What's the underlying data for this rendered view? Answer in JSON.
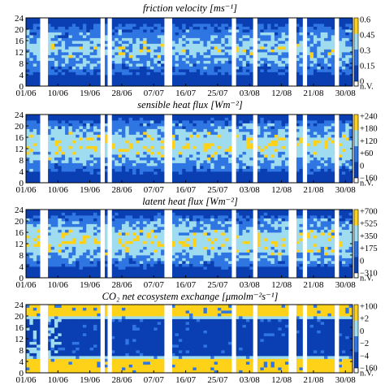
{
  "colors": {
    "low": "#0a3fb2",
    "mid": "#2f76e2",
    "high": "#9fdcf0",
    "highest": "#ffd21a",
    "background": "#ffffff",
    "frame": "#000000"
  },
  "icons": {
    "colorbar": "vertical-colorbar"
  },
  "chart_data": [
    {
      "type": "heatmap",
      "title": "friction velocity [ms⁻¹]",
      "xlabel": "",
      "ylabel": "",
      "x_range": [
        "01/06",
        "31/08"
      ],
      "x_ticks": [
        "01/06",
        "10/06",
        "19/06",
        "28/06",
        "07/07",
        "16/07",
        "25/07",
        "03/08",
        "12/08",
        "21/08",
        "30/08"
      ],
      "x_tick_days": [
        0,
        9,
        18,
        27,
        36,
        45,
        54,
        63,
        72,
        81,
        90
      ],
      "ylim": [
        0,
        24
      ],
      "y_ticks": [
        0,
        4,
        8,
        12,
        16,
        20,
        24
      ],
      "colorbar": {
        "ticks": [
          "0.6",
          "0.45",
          "0.3",
          "0.15",
          "0",
          "n.V."
        ],
        "range": [
          0,
          0.6
        ]
      },
      "pattern": "diurnal",
      "gaps_days": [
        4,
        21,
        23,
        39,
        58,
        64,
        74,
        78,
        87
      ],
      "grid": false
    },
    {
      "type": "heatmap",
      "title": "sensible heat flux [Wm⁻²]",
      "xlabel": "",
      "ylabel": "",
      "x_range": [
        "01/06",
        "31/08"
      ],
      "x_ticks": [
        "01/06",
        "10/06",
        "19/06",
        "28/06",
        "07/07",
        "16/07",
        "25/07",
        "03/08",
        "12/08",
        "21/08",
        "30/08"
      ],
      "x_tick_days": [
        0,
        9,
        18,
        27,
        36,
        45,
        54,
        63,
        72,
        81,
        90
      ],
      "ylim": [
        0,
        24
      ],
      "y_ticks": [
        0,
        4,
        8,
        12,
        16,
        20,
        24
      ],
      "colorbar": {
        "ticks": [
          "+240",
          "+180",
          "+120",
          "+60",
          "0",
          "−160",
          "n.V."
        ],
        "range": [
          -160,
          240
        ]
      },
      "pattern": "diurnal",
      "gaps_days": [
        4,
        21,
        23,
        39,
        58,
        64,
        74,
        78,
        87
      ],
      "grid": false
    },
    {
      "type": "heatmap",
      "title": "latent heat flux [Wm⁻²]",
      "xlabel": "",
      "ylabel": "",
      "x_range": [
        "01/06",
        "31/08"
      ],
      "x_ticks": [
        "01/06",
        "10/06",
        "19/06",
        "28/06",
        "07/07",
        "16/07",
        "25/07",
        "03/08",
        "12/08",
        "21/08",
        "30/08"
      ],
      "x_tick_days": [
        0,
        9,
        18,
        27,
        36,
        45,
        54,
        63,
        72,
        81,
        90
      ],
      "ylim": [
        0,
        24
      ],
      "y_ticks": [
        0,
        4,
        8,
        12,
        16,
        20,
        24
      ],
      "colorbar": {
        "ticks": [
          "+700",
          "+525",
          "+350",
          "+175",
          "0",
          "−310",
          "n.V."
        ],
        "range": [
          -310,
          700
        ]
      },
      "pattern": "diurnal",
      "gaps_days": [
        4,
        21,
        23,
        39,
        58,
        64,
        74,
        78,
        87
      ],
      "grid": false
    },
    {
      "type": "heatmap",
      "title": "CO₂ net ecosystem exchange [μmolm⁻²s⁻¹]",
      "xlabel": "",
      "ylabel": "",
      "x_range": [
        "01/06",
        "31/08"
      ],
      "x_ticks": [
        "01/06",
        "10/06",
        "19/06",
        "28/06",
        "07/07",
        "16/07",
        "25/07",
        "03/08",
        "12/08",
        "21/08",
        "30/08"
      ],
      "x_tick_days": [
        0,
        9,
        18,
        27,
        36,
        45,
        54,
        63,
        72,
        81,
        90
      ],
      "ylim": [
        0,
        24
      ],
      "y_ticks": [
        0,
        4,
        8,
        12,
        16,
        20,
        24
      ],
      "colorbar": {
        "ticks": [
          "+100",
          "+2",
          "0",
          "−2",
          "−4",
          "−160",
          "n.V."
        ],
        "range": [
          -160,
          100
        ]
      },
      "pattern": "inverse",
      "gaps_days": [
        4,
        21,
        23,
        39,
        58,
        64,
        74,
        78,
        87
      ],
      "grid": false
    }
  ]
}
